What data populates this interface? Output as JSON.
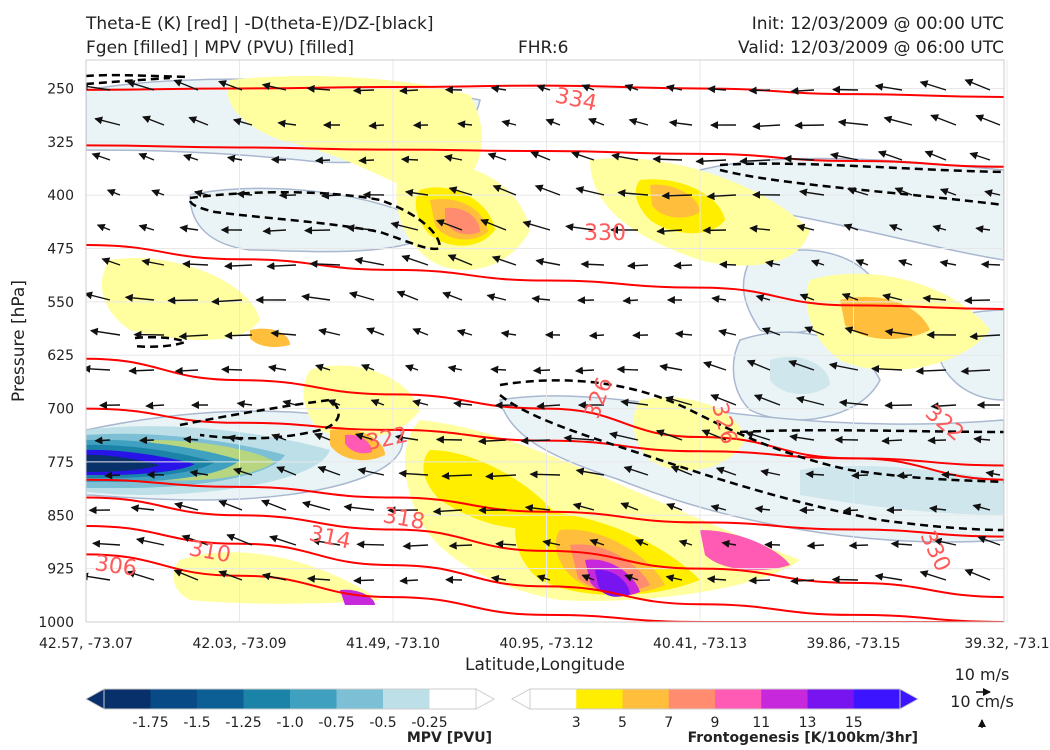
{
  "header": {
    "title_line1": "Theta-E (K) [red] | -D(theta-E)/DZ-[black]",
    "title_line2": "Fgen [filled] | MPV (PVU) [filled]",
    "fhr": "FHR:6",
    "init": "Init: 12/03/2009 @ 00:00 UTC",
    "valid": "Valid: 12/03/2009 @ 06:00 UTC"
  },
  "chart_data": {
    "type": "cross-section",
    "xlabel": "Latitude,Longitude",
    "ylabel": "Pressure [hPa]",
    "x_ticks": [
      "42.57, -73.07",
      "42.03, -73.09",
      "41.49, -73.10",
      "40.95, -73.12",
      "40.41, -73.13",
      "39.86, -73.15",
      "39.32, -73.1"
    ],
    "y_ticks": [
      250,
      325,
      400,
      475,
      550,
      625,
      700,
      775,
      850,
      925,
      1000
    ],
    "ylim": [
      1000,
      210
    ],
    "y_inverted": true,
    "grid": true,
    "theta_e_levels": [
      {
        "label": "334",
        "p": [
          252,
          250,
          248,
          246,
          250,
          258,
          262
        ],
        "color": "#ff0000"
      },
      {
        "label": "330",
        "p": [
          330,
          333,
          336,
          338,
          342,
          352,
          360
        ],
        "color": "#ff0000"
      },
      {
        "label": "330",
        "p": [
          470,
          490,
          505,
          520,
          530,
          555,
          560
        ],
        "color": "#ff0000"
      },
      {
        "label": "326",
        "p": [
          630,
          660,
          680,
          700,
          740,
          770,
          780
        ],
        "color": "#ff0000"
      },
      {
        "label": "322",
        "p": [
          700,
          720,
          730,
          745,
          760,
          770,
          800
        ],
        "color": "#ff0000"
      },
      {
        "label": "318",
        "p": [
          800,
          810,
          825,
          845,
          860,
          870,
          880
        ],
        "color": "#ff0000"
      },
      {
        "label": "314",
        "p": [
          825,
          850,
          870,
          900,
          925,
          945,
          965
        ],
        "color": "#ff0000"
      },
      {
        "label": "310",
        "p": [
          865,
          890,
          920,
          950,
          975,
          990,
          1000
        ],
        "color": "#ff0000"
      },
      {
        "label": "306",
        "p": [
          905,
          935,
          965,
          990,
          1000,
          1000,
          1000
        ],
        "color": "#ff0000"
      }
    ],
    "contour_labels": [
      "334",
      "330",
      "326",
      "326",
      "322",
      "322",
      "318",
      "314",
      "310",
      "306",
      "330"
    ],
    "mpv_colorbar": {
      "label": "MPV [PVU]",
      "ticks": [
        "-1.75",
        "-1.5",
        "-1.25",
        "-1.0",
        "-0.75",
        "-0.5",
        "-0.25"
      ],
      "colors": [
        "#08306b",
        "#084a86",
        "#0b5f95",
        "#1b82a8",
        "#3fa0c0",
        "#7dbfd4",
        "#bde0e8",
        "#ffffff"
      ]
    },
    "fgen_colorbar": {
      "label": "Frontogenesis [K/100km/3hr]",
      "ticks": [
        "3",
        "5",
        "7",
        "9",
        "11",
        "13",
        "15"
      ],
      "colors": [
        "#ffffff",
        "#ffee00",
        "#ffbe3c",
        "#ff8c6e",
        "#ff5ab4",
        "#c828dc",
        "#7814f0",
        "#3c14ff"
      ]
    },
    "wind_key": {
      "horizontal": "10 m/s",
      "vertical": "10 cm/s"
    }
  }
}
